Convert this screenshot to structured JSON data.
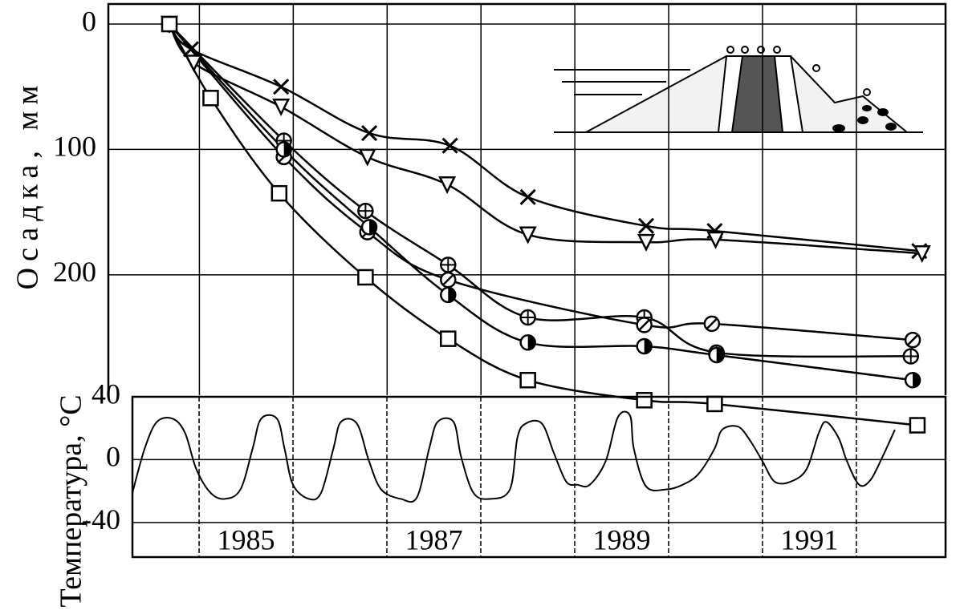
{
  "chart_data": [
    {
      "type": "line",
      "y_label": "Осадка, мм",
      "y_inverted": true,
      "color": "#000000",
      "xlim": [
        1984.03,
        1992.95
      ],
      "ylim": [
        -16,
        296
      ],
      "yticks": [
        0,
        100,
        200
      ],
      "xgrid": [
        1985,
        1986,
        1987,
        1988,
        1989,
        1990,
        1991,
        1992
      ],
      "grid": true,
      "series": [
        {
          "marker": "x",
          "x": [
            1984.68,
            1984.91,
            1985.87,
            1986.81,
            1987.67,
            1988.5,
            1989.76,
            1990.49,
            1992.67
          ],
          "values": [
            0,
            20,
            50,
            87,
            97,
            138,
            161,
            165,
            181
          ]
        },
        {
          "marker": "triangle",
          "x": [
            1984.68,
            1984.94,
            1985.87,
            1986.79,
            1987.64,
            1988.5,
            1989.76,
            1990.5,
            1992.7
          ],
          "values": [
            0,
            31,
            66,
            106,
            128,
            168,
            174,
            172,
            183
          ]
        },
        {
          "marker": "circle-plus",
          "x": [
            1984.68,
            1985.9,
            1986.77,
            1987.65,
            1988.5,
            1989.74,
            1990.51,
            1992.58
          ],
          "values": [
            0,
            93,
            149,
            192,
            234,
            234,
            262,
            265
          ]
        },
        {
          "marker": "circle-slash",
          "x": [
            1984.68,
            1985.9,
            1986.79,
            1987.65,
            1989.74,
            1990.46,
            1992.6
          ],
          "values": [
            0,
            106,
            166,
            204,
            240,
            239,
            252
          ]
        },
        {
          "marker": "circle-half",
          "x": [
            1984.68,
            1985.9,
            1986.81,
            1987.65,
            1988.5,
            1989.74,
            1990.51,
            1992.6
          ],
          "values": [
            0,
            100,
            162,
            216,
            254,
            257,
            264,
            284
          ]
        },
        {
          "marker": "square",
          "x": [
            1984.68,
            1985.12,
            1985.85,
            1986.77,
            1987.65,
            1988.5,
            1989.74,
            1990.49,
            1992.65
          ],
          "values": [
            0,
            59,
            135,
            202,
            251,
            284,
            300,
            303,
            320
          ]
        }
      ]
    },
    {
      "type": "line",
      "y_label": "Температура, °C",
      "color": "#000000",
      "xlim": [
        1984.29,
        1992.95
      ],
      "ylim": [
        -62,
        40
      ],
      "yticks": [
        40,
        0,
        -40
      ],
      "xticks": [
        1985,
        1987,
        1989,
        1991
      ],
      "xgrid": [
        1985,
        1986,
        1987,
        1988,
        1989,
        1990,
        1991,
        1992
      ],
      "grid": true,
      "x": [
        1984.29,
        1984.42,
        1984.55,
        1984.72,
        1984.85,
        1984.97,
        1985.12,
        1985.27,
        1985.44,
        1985.57,
        1985.66,
        1985.83,
        1985.91,
        1986.0,
        1986.17,
        1986.3,
        1986.43,
        1986.51,
        1986.68,
        1986.81,
        1986.94,
        1987.15,
        1987.32,
        1987.45,
        1987.54,
        1987.71,
        1987.79,
        1987.92,
        1988.09,
        1988.31,
        1988.39,
        1988.48,
        1988.65,
        1988.78,
        1988.91,
        1989.03,
        1989.16,
        1989.33,
        1989.46,
        1989.59,
        1989.63,
        1989.76,
        1989.97,
        1990.15,
        1990.32,
        1990.49,
        1990.57,
        1990.74,
        1990.87,
        1991.0,
        1991.13,
        1991.3,
        1991.47,
        1991.6,
        1991.68,
        1991.81,
        1991.9,
        1992.03,
        1992.15,
        1992.28,
        1992.41
      ],
      "values": [
        -21,
        7,
        24,
        26,
        17,
        -6,
        -21,
        -25,
        -19,
        7,
        26,
        26,
        7,
        -16,
        -25,
        -21,
        7,
        24,
        23,
        -1,
        -19,
        -25,
        -24,
        7,
        24,
        24,
        2,
        -21,
        -25,
        -19,
        14,
        23,
        23,
        4,
        -14,
        -16,
        -16,
        -1,
        27,
        28,
        7,
        -17,
        -19,
        -16,
        -9,
        7,
        19,
        21,
        12,
        -1,
        -14,
        -14,
        -6,
        17,
        24,
        14,
        -1,
        -16,
        -13,
        2,
        19
      ]
    }
  ]
}
